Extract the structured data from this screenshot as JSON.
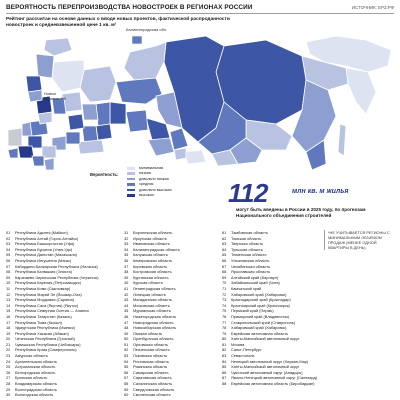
{
  "header": {
    "title": "ВЕРОЯТНОСТЬ ПЕРЕПРОИЗВОДСТВА НОВОСТРОЕК В РЕГИОНАХ РОССИИ",
    "source": "ИСТОЧНИК: ЕРЗ.РФ",
    "subtitle": "Рейтинг рассчитан на основе данных о вводе новых проектов, фактической распроданности новостроек и средневзвешенной цене 1 кв. м²"
  },
  "map": {
    "labels": {
      "new_regions": "Новые регионы РФ",
      "kaliningrad": "Калининградская обл."
    },
    "colors": {
      "minimal": "#dde3f0",
      "low": "#b7c3e0",
      "moderate": "#8d9fd0",
      "medium": "#6078bd",
      "above_average": "#3d56a6",
      "high": "#25388a"
    }
  },
  "legend": {
    "title": "Вероятность:",
    "items": [
      {
        "label": "минимальная",
        "color": "#dde3f0"
      },
      {
        "label": "низкая",
        "color": "#b7c3e0"
      },
      {
        "label": "довольно низкая",
        "color": "#8d9fd0"
      },
      {
        "label": "средняя",
        "color": "#6078bd"
      },
      {
        "label": "довольно высокая",
        "color": "#3d56a6"
      },
      {
        "label": "высокая",
        "color": "#25388a"
      }
    ]
  },
  "highlight": {
    "number": "112",
    "unit": "млн кв. м жилья",
    "note": "могут быть введены в России в 2025 году, по прогнозам Национального объединения строителей"
  },
  "side_note": "*НЕ УЧИТЫВАЕТСЯ РЕГИОНЫ С МИНИМАЛЬНЫМ ОБЪЕМОМ ПРОДАЖ (МЕНЕЕ ОДНОЙ КВАРТИРЫ В ДЕНЬ)",
  "regions_col1": [
    {
      "n": "01",
      "name": "Республика Адыгея (Майкоп)"
    },
    {
      "n": "02",
      "name": "Республика Алтай (Горно-Алтайск)"
    },
    {
      "n": "03",
      "name": "Республика Башкортостан (Уфа)"
    },
    {
      "n": "04",
      "name": "Республика Бурятия (Улан-Удэ)"
    },
    {
      "n": "05",
      "name": "Республика Дагестан (Махачкала)"
    },
    {
      "n": "06",
      "name": "Республика Ингушетия (Магас)"
    },
    {
      "n": "07",
      "name": "Кабардино-Балкарская Республика (Нальчик)"
    },
    {
      "n": "08",
      "name": "Республика Калмыкия (Элиста)"
    },
    {
      "n": "09",
      "name": "Карачаево-Черкесская Республика (Черкесск)"
    },
    {
      "n": "10",
      "name": "Республика Карелия (Петрозаводск)"
    },
    {
      "n": "11",
      "name": "Республика Коми (Сыктывкар)"
    },
    {
      "n": "12",
      "name": "Республика Марий Эл (Йошкар-Ола)"
    },
    {
      "n": "13",
      "name": "Республика Мордовия (Саранск)"
    },
    {
      "n": "14",
      "name": "Республика Саха (Якутия) (Якутск)"
    },
    {
      "n": "15",
      "name": "Республика Северная Осетия — Алания"
    },
    {
      "n": "16",
      "name": "Республика Татарстан (Казань)"
    },
    {
      "n": "17",
      "name": "Республика Тыва (Кызыл)"
    },
    {
      "n": "18",
      "name": "Удмуртская Республика (Ижевск)"
    },
    {
      "n": "19",
      "name": "Республика Хакасия (Абакан)"
    },
    {
      "n": "20",
      "name": "Чеченская Республика (Грозный)"
    },
    {
      "n": "21",
      "name": "Чувашская Республика (Чебоксары)"
    },
    {
      "n": "22",
      "name": "Республика Крым (Симферополь)"
    },
    {
      "n": "23",
      "name": "Амурская область"
    },
    {
      "n": "24",
      "name": "Архангельская область"
    },
    {
      "n": "25",
      "name": "Астраханская область"
    },
    {
      "n": "26",
      "name": "Белгородская область"
    },
    {
      "n": "27",
      "name": "Брянская область"
    },
    {
      "n": "28",
      "name": "Владимирская область"
    },
    {
      "n": "29",
      "name": "Волгоградская область"
    },
    {
      "n": "30",
      "name": "Вологодская область"
    }
  ],
  "regions_col2": [
    {
      "n": "31",
      "name": "Воронежская область"
    },
    {
      "n": "32",
      "name": "Иркутская область"
    },
    {
      "n": "33",
      "name": "Ивановская область"
    },
    {
      "n": "34",
      "name": "Калининградская область"
    },
    {
      "n": "35",
      "name": "Калужская область"
    },
    {
      "n": "36",
      "name": "Кемеровская область"
    },
    {
      "n": "37",
      "name": "Кировская область"
    },
    {
      "n": "38",
      "name": "Костромская область"
    },
    {
      "n": "39",
      "name": "Курганская область"
    },
    {
      "n": "40",
      "name": "Курская область"
    },
    {
      "n": "41",
      "name": "Ленинградская область"
    },
    {
      "n": "42",
      "name": "Липецкая область"
    },
    {
      "n": "43",
      "name": "Магаданская область"
    },
    {
      "n": "44",
      "name": "Московская область"
    },
    {
      "n": "45",
      "name": "Мурманская область"
    },
    {
      "n": "46",
      "name": "Нижегородская область"
    },
    {
      "n": "47",
      "name": "Новгородская область"
    },
    {
      "n": "48",
      "name": "Новосибирская область"
    },
    {
      "n": "49",
      "name": "Омская область"
    },
    {
      "n": "50",
      "name": "Оренбургская область"
    },
    {
      "n": "51",
      "name": "Орловская область"
    },
    {
      "n": "52",
      "name": "Пензенская область"
    },
    {
      "n": "53",
      "name": "Псковская область"
    },
    {
      "n": "54",
      "name": "Ростовская область"
    },
    {
      "n": "55",
      "name": "Рязанская область"
    },
    {
      "n": "56",
      "name": "Самарская область"
    },
    {
      "n": "57",
      "name": "Саратовская область"
    },
    {
      "n": "58",
      "name": "Сахалинская область"
    },
    {
      "n": "59",
      "name": "Свердловская область"
    },
    {
      "n": "60",
      "name": "Смоленская область"
    }
  ],
  "regions_col3": [
    {
      "n": "61",
      "name": "Тамбовская область"
    },
    {
      "n": "62",
      "name": "Томская область"
    },
    {
      "n": "63",
      "name": "Тверская область"
    },
    {
      "n": "64",
      "name": "Тульская область"
    },
    {
      "n": "65",
      "name": "Тюменская область"
    },
    {
      "n": "66",
      "name": "Ульяновская область"
    },
    {
      "n": "67",
      "name": "Челябинская область"
    },
    {
      "n": "68",
      "name": "Ярославская область"
    },
    {
      "n": "69",
      "name": "Алтайский край (Барнаул)"
    },
    {
      "n": "70",
      "name": "Забайкальский край (Чита)"
    },
    {
      "n": "71",
      "name": "Камчатский край"
    },
    {
      "n": "72",
      "name": "Хабаровский край (Хабаровск)"
    },
    {
      "n": "73",
      "name": "Краснодарский край (Краснодар)"
    },
    {
      "n": "74",
      "name": "Красноярский край (Красноярск)"
    },
    {
      "n": "75",
      "name": "Пермский край (Пермь)"
    },
    {
      "n": "76",
      "name": "Приморский край (Владивосток)"
    },
    {
      "n": "77",
      "name": "Ставропольский край (Ставрополь)"
    },
    {
      "n": "78",
      "name": "Хабаровский край (Хабаровск)"
    },
    {
      "n": "79",
      "name": "Еврейская автономная область"
    },
    {
      "n": "80",
      "name": "Ханты-Мансийский автономный округ"
    },
    {
      "n": "81",
      "name": "Москва"
    },
    {
      "n": "82",
      "name": "Санкт-Петербург"
    },
    {
      "n": "83",
      "name": "Севастополь"
    },
    {
      "n": "84",
      "name": "Ненецкий автономный округ (Нарьян-Мар)"
    },
    {
      "n": "85",
      "name": "Ханты-Мансийский автономный округ"
    },
    {
      "n": "86",
      "name": "Чукотский автономный округ (Анадырь)"
    },
    {
      "n": "87",
      "name": "Ямало-Ненецкий автономный округ (Салехард)"
    },
    {
      "n": "88",
      "name": "Еврейская автономная область (Биробиджан)"
    }
  ]
}
